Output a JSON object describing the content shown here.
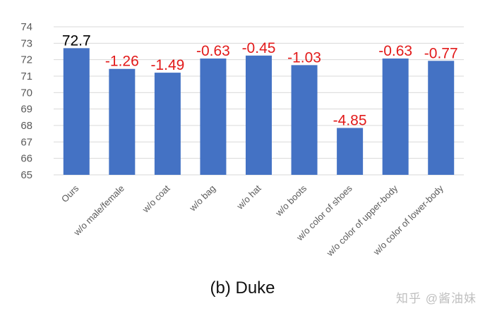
{
  "chart_data": {
    "type": "bar",
    "title": "",
    "xlabel": "",
    "ylabel": "",
    "ylim": [
      65,
      74
    ],
    "yticks": [
      65,
      66,
      67,
      68,
      69,
      70,
      71,
      72,
      73,
      74
    ],
    "grid": true,
    "categories": [
      "Ours",
      "w/o male/female",
      "w/o coat",
      "w/o bag",
      "w/o hat",
      "w/o boots",
      "w/o color of shoes",
      "w/o color of upper-body",
      "w/o color of lower-body"
    ],
    "values": [
      72.7,
      71.44,
      71.21,
      72.07,
      72.25,
      71.67,
      67.85,
      72.07,
      71.93
    ],
    "data_labels": [
      "72.7",
      "-1.26",
      "-1.49",
      "-0.63",
      "-0.45",
      "-1.03",
      "-4.85",
      "-0.63",
      "-0.77"
    ],
    "colors": {
      "bar": "#4472c4",
      "baseline_label": "#000000",
      "delta_label": "#e21a1a",
      "grid": "#d9d9d9",
      "tick_text": "#595959"
    }
  },
  "caption": "(b) Duke",
  "watermark": "知乎 @酱油妹"
}
